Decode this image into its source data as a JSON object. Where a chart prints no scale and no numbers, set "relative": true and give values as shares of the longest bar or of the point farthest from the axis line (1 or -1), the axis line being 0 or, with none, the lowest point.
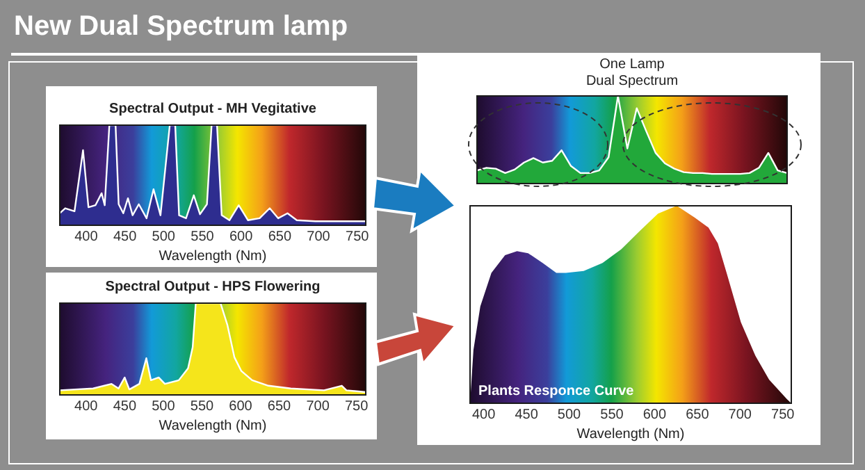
{
  "chart_data": [
    {
      "type": "other",
      "title": "New Dual Spectrum lamp"
    },
    {
      "type": "area",
      "title": "Spectral Output - MH Vegitative",
      "xlabel": "Wavelength (Nm)",
      "relative": true,
      "xlim": [
        366,
        761
      ],
      "xticks": [
        400,
        450,
        500,
        550,
        600,
        650,
        700,
        750
      ],
      "color": "#2e2d8f",
      "x": [
        366,
        373,
        385,
        396,
        403,
        412,
        420,
        424,
        430,
        438,
        442,
        448,
        454,
        460,
        468,
        478,
        487,
        496,
        508,
        515,
        520,
        529,
        539,
        547,
        556,
        562,
        569,
        575,
        585,
        597,
        609,
        624,
        637,
        648,
        660,
        672,
        696,
        750,
        761
      ],
      "values": [
        0.12,
        0.17,
        0.14,
        0.75,
        0.18,
        0.2,
        0.32,
        0.2,
        1,
        1,
        0.21,
        0.12,
        0.27,
        0.1,
        0.21,
        0.07,
        0.36,
        0.1,
        1,
        1,
        0.1,
        0.07,
        0.3,
        0.11,
        0.21,
        1,
        1,
        0.1,
        0.05,
        0.2,
        0.05,
        0.07,
        0.17,
        0.07,
        0.12,
        0.05,
        0.04,
        0.04,
        0.04
      ]
    },
    {
      "type": "area",
      "title": "Spectral Output - HPS Flowering",
      "xlabel": "Wavelength (Nm)",
      "relative": true,
      "xlim": [
        366,
        762
      ],
      "xticks": [
        400,
        450,
        500,
        550,
        600,
        650,
        700,
        750
      ],
      "color": "#f5e51b",
      "x": [
        366,
        409,
        433,
        442,
        450,
        456,
        469,
        478,
        484,
        494,
        502,
        520,
        532,
        538,
        542,
        553,
        562,
        574,
        583,
        592,
        601,
        615,
        636,
        665,
        708,
        731,
        737,
        762
      ],
      "values": [
        0.05,
        0.07,
        0.12,
        0.07,
        0.19,
        0.06,
        0.12,
        0.4,
        0.16,
        0.19,
        0.12,
        0.16,
        0.29,
        0.52,
        1,
        1,
        1,
        1,
        0.76,
        0.41,
        0.26,
        0.16,
        0.1,
        0.07,
        0.05,
        0.1,
        0.05,
        0.03
      ]
    },
    {
      "type": "area",
      "title": "One Lamp",
      "subtitle": "Dual Spectrum",
      "relative": true,
      "color": "#22a83a",
      "categories": [
        null,
        null,
        null,
        null,
        null,
        null,
        null,
        null,
        null,
        null,
        null,
        null,
        null,
        null,
        null,
        null,
        null,
        null,
        null,
        null,
        null,
        null,
        null,
        null,
        null,
        null,
        null,
        null,
        null,
        null,
        null,
        null,
        null,
        null
      ],
      "values": [
        0.15,
        0.18,
        0.17,
        0.12,
        0.16,
        0.24,
        0.29,
        0.24,
        0.26,
        0.38,
        0.2,
        0.12,
        0.12,
        0.15,
        0.3,
        1,
        0.4,
        0.86,
        0.6,
        0.35,
        0.23,
        0.17,
        0.13,
        0.12,
        0.12,
        0.11,
        0.11,
        0.11,
        0.11,
        0.12,
        0.18,
        0.35,
        0.15,
        0.12
      ]
    },
    {
      "type": "area",
      "xlabel": "Wavelength (Nm)",
      "relative": true,
      "xlim": [
        384,
        760
      ],
      "xticks": [
        400,
        450,
        500,
        550,
        600,
        650,
        700,
        750
      ],
      "annotations": [
        "Plants Responce Curve"
      ],
      "x": [
        384,
        388,
        396,
        409,
        425,
        439,
        452,
        469,
        485,
        496,
        517,
        539,
        561,
        582,
        604,
        626,
        647,
        663,
        674,
        685,
        701,
        718,
        734,
        755,
        760
      ],
      "values": [
        0,
        0.27,
        0.49,
        0.66,
        0.75,
        0.77,
        0.76,
        0.71,
        0.66,
        0.66,
        0.67,
        0.71,
        0.78,
        0.87,
        0.96,
        1,
        0.94,
        0.89,
        0.81,
        0.65,
        0.41,
        0.24,
        0.12,
        0.02,
        0
      ]
    }
  ]
}
